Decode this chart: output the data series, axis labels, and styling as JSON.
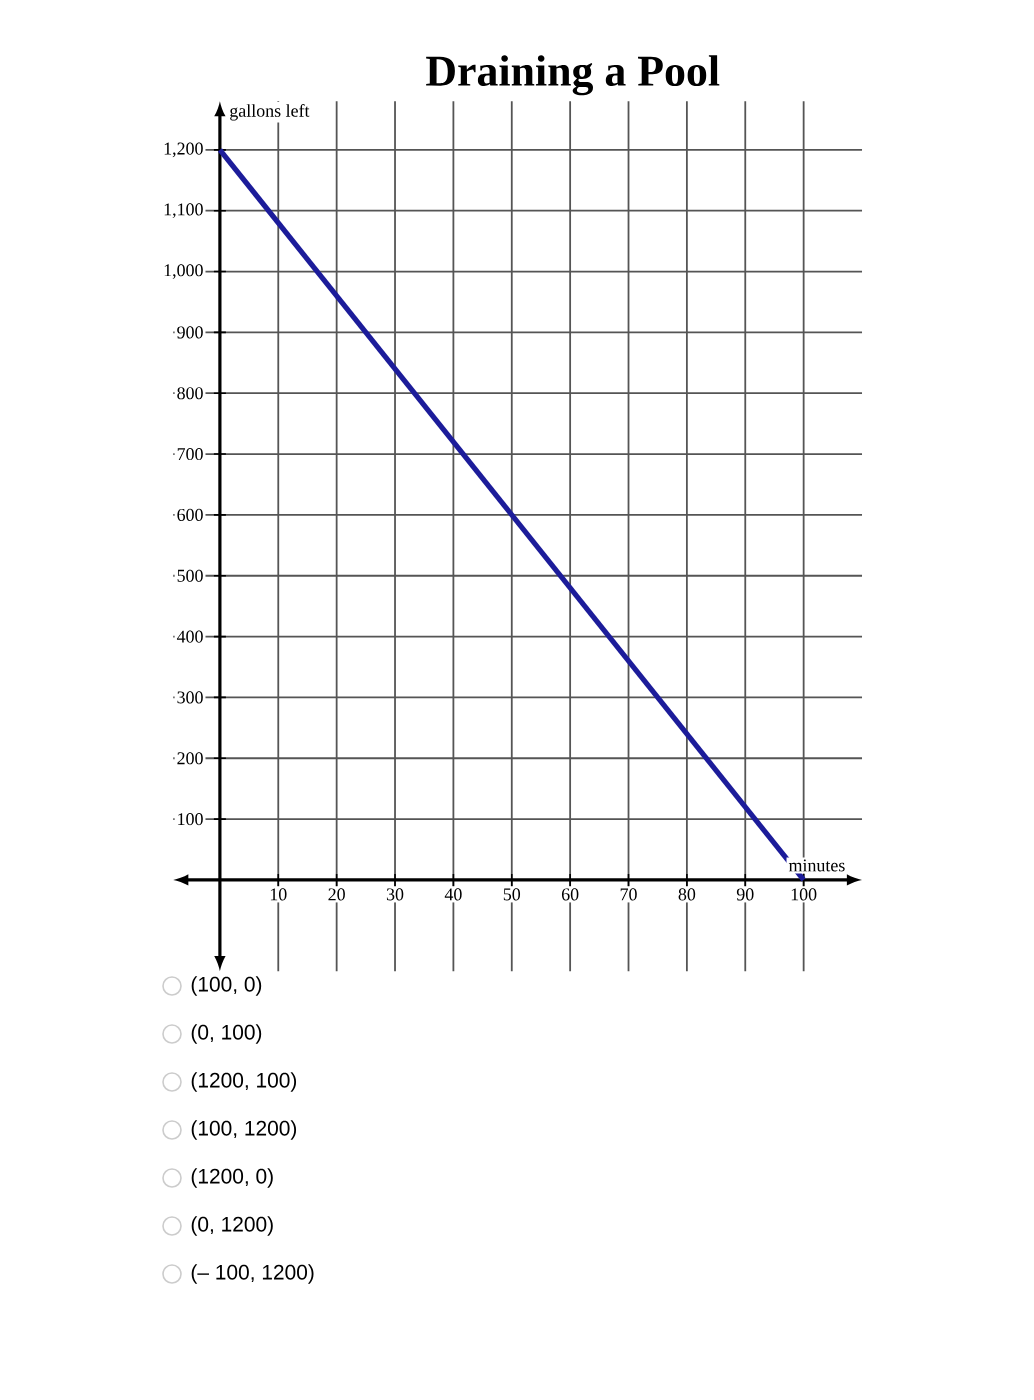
{
  "chart_data": {
    "type": "line",
    "title": "Draining a Pool",
    "xlabel": "minutes",
    "ylabel": "gallons left",
    "x": [
      0,
      100
    ],
    "series": [
      {
        "color": "#1c1c9a",
        "values": [
          1200,
          0
        ]
      }
    ],
    "xlim": [
      -8,
      110
    ],
    "ylim": [
      -150,
      1280
    ],
    "xticks": [
      10,
      20,
      30,
      40,
      50,
      60,
      70,
      80,
      90,
      100
    ],
    "yticks": [
      100,
      200,
      300,
      400,
      500,
      600,
      700,
      800,
      900,
      {
        "value": 1000,
        "label": "1,000"
      },
      {
        "value": 1100,
        "label": "1,100"
      },
      {
        "value": 1200,
        "label": "1,200"
      }
    ],
    "grid": true,
    "annotations": [
      "(100, 0)",
      "(0, 100)",
      "(1200, 100)",
      "(100, 1200)",
      "(1200, 0)",
      "(0, 1200)",
      "(– 100, 1200)"
    ]
  }
}
